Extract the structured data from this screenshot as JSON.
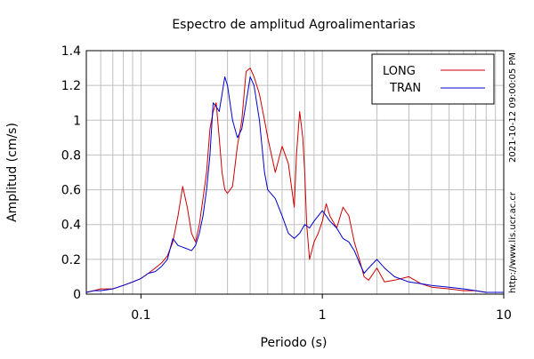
{
  "chart_data": {
    "type": "line",
    "title": "Espectro de amplitud Agroalimentarias",
    "xlabel": "Periodo (s)",
    "ylabel": "Amplitud (cm/s)",
    "x_scale": "log",
    "xlim": [
      0.05,
      10
    ],
    "ylim": [
      0,
      1.4
    ],
    "x_tick_labels": [
      {
        "value": 0.1,
        "label": "0.1"
      },
      {
        "value": 1,
        "label": "1"
      },
      {
        "value": 10,
        "label": "10"
      }
    ],
    "y_tick_labels": [
      {
        "value": 0,
        "label": "0"
      },
      {
        "value": 0.2,
        "label": "0.2"
      },
      {
        "value": 0.4,
        "label": "0.4"
      },
      {
        "value": 0.6,
        "label": "0.6"
      },
      {
        "value": 0.8,
        "label": "0.8"
      },
      {
        "value": 1.0,
        "label": "1"
      },
      {
        "value": 1.2,
        "label": "1.2"
      },
      {
        "value": 1.4,
        "label": "1.4"
      }
    ],
    "grid": true,
    "legend_position": "top-right",
    "side_annotations": {
      "timestamp": "2021-10-12 09:00:05 PM",
      "url": "http://www.lis.ucr.ac.cr"
    },
    "series": [
      {
        "name": "LONG",
        "color": "#cc0000",
        "points": [
          [
            0.05,
            0.01
          ],
          [
            0.055,
            0.02
          ],
          [
            0.06,
            0.03
          ],
          [
            0.07,
            0.03
          ],
          [
            0.08,
            0.05
          ],
          [
            0.09,
            0.07
          ],
          [
            0.1,
            0.09
          ],
          [
            0.11,
            0.12
          ],
          [
            0.12,
            0.15
          ],
          [
            0.13,
            0.18
          ],
          [
            0.14,
            0.22
          ],
          [
            0.15,
            0.3
          ],
          [
            0.16,
            0.45
          ],
          [
            0.17,
            0.62
          ],
          [
            0.18,
            0.5
          ],
          [
            0.19,
            0.35
          ],
          [
            0.2,
            0.3
          ],
          [
            0.21,
            0.4
          ],
          [
            0.22,
            0.55
          ],
          [
            0.23,
            0.7
          ],
          [
            0.24,
            0.95
          ],
          [
            0.25,
            1.05
          ],
          [
            0.26,
            1.1
          ],
          [
            0.27,
            0.9
          ],
          [
            0.28,
            0.7
          ],
          [
            0.29,
            0.6
          ],
          [
            0.3,
            0.58
          ],
          [
            0.32,
            0.62
          ],
          [
            0.34,
            0.85
          ],
          [
            0.36,
            1.0
          ],
          [
            0.38,
            1.28
          ],
          [
            0.4,
            1.3
          ],
          [
            0.42,
            1.25
          ],
          [
            0.45,
            1.15
          ],
          [
            0.48,
            1.0
          ],
          [
            0.5,
            0.9
          ],
          [
            0.55,
            0.7
          ],
          [
            0.6,
            0.85
          ],
          [
            0.65,
            0.75
          ],
          [
            0.7,
            0.5
          ],
          [
            0.72,
            0.8
          ],
          [
            0.75,
            1.05
          ],
          [
            0.78,
            0.9
          ],
          [
            0.8,
            0.7
          ],
          [
            0.82,
            0.4
          ],
          [
            0.85,
            0.2
          ],
          [
            0.9,
            0.3
          ],
          [
            0.95,
            0.35
          ],
          [
            1.0,
            0.42
          ],
          [
            1.05,
            0.52
          ],
          [
            1.1,
            0.45
          ],
          [
            1.2,
            0.38
          ],
          [
            1.3,
            0.5
          ],
          [
            1.4,
            0.45
          ],
          [
            1.5,
            0.3
          ],
          [
            1.6,
            0.2
          ],
          [
            1.7,
            0.1
          ],
          [
            1.8,
            0.08
          ],
          [
            2.0,
            0.15
          ],
          [
            2.2,
            0.07
          ],
          [
            2.5,
            0.08
          ],
          [
            3.0,
            0.1
          ],
          [
            3.5,
            0.06
          ],
          [
            4.0,
            0.04
          ],
          [
            5.0,
            0.03
          ],
          [
            6.0,
            0.02
          ],
          [
            7.0,
            0.02
          ],
          [
            8.0,
            0.01
          ],
          [
            10.0,
            0.01
          ]
        ]
      },
      {
        "name": "TRAN",
        "color": "#0000cc",
        "points": [
          [
            0.05,
            0.01
          ],
          [
            0.055,
            0.02
          ],
          [
            0.06,
            0.02
          ],
          [
            0.07,
            0.03
          ],
          [
            0.08,
            0.05
          ],
          [
            0.09,
            0.07
          ],
          [
            0.1,
            0.09
          ],
          [
            0.11,
            0.12
          ],
          [
            0.12,
            0.13
          ],
          [
            0.13,
            0.16
          ],
          [
            0.14,
            0.2
          ],
          [
            0.15,
            0.32
          ],
          [
            0.16,
            0.28
          ],
          [
            0.17,
            0.27
          ],
          [
            0.18,
            0.26
          ],
          [
            0.19,
            0.25
          ],
          [
            0.2,
            0.28
          ],
          [
            0.21,
            0.35
          ],
          [
            0.22,
            0.45
          ],
          [
            0.23,
            0.6
          ],
          [
            0.24,
            0.8
          ],
          [
            0.25,
            1.1
          ],
          [
            0.26,
            1.08
          ],
          [
            0.27,
            1.05
          ],
          [
            0.28,
            1.15
          ],
          [
            0.29,
            1.25
          ],
          [
            0.3,
            1.2
          ],
          [
            0.32,
            1.0
          ],
          [
            0.34,
            0.9
          ],
          [
            0.36,
            0.95
          ],
          [
            0.38,
            1.1
          ],
          [
            0.4,
            1.25
          ],
          [
            0.42,
            1.2
          ],
          [
            0.45,
            1.0
          ],
          [
            0.48,
            0.7
          ],
          [
            0.5,
            0.6
          ],
          [
            0.55,
            0.55
          ],
          [
            0.6,
            0.45
          ],
          [
            0.65,
            0.35
          ],
          [
            0.7,
            0.32
          ],
          [
            0.75,
            0.35
          ],
          [
            0.8,
            0.4
          ],
          [
            0.85,
            0.38
          ],
          [
            0.9,
            0.42
          ],
          [
            0.95,
            0.45
          ],
          [
            1.0,
            0.48
          ],
          [
            1.05,
            0.45
          ],
          [
            1.1,
            0.42
          ],
          [
            1.2,
            0.38
          ],
          [
            1.3,
            0.32
          ],
          [
            1.4,
            0.3
          ],
          [
            1.5,
            0.25
          ],
          [
            1.6,
            0.18
          ],
          [
            1.7,
            0.12
          ],
          [
            1.8,
            0.15
          ],
          [
            2.0,
            0.2
          ],
          [
            2.2,
            0.15
          ],
          [
            2.5,
            0.1
          ],
          [
            3.0,
            0.07
          ],
          [
            3.5,
            0.06
          ],
          [
            4.0,
            0.05
          ],
          [
            5.0,
            0.04
          ],
          [
            6.0,
            0.03
          ],
          [
            7.0,
            0.02
          ],
          [
            8.0,
            0.01
          ],
          [
            10.0,
            0.01
          ]
        ]
      }
    ]
  }
}
